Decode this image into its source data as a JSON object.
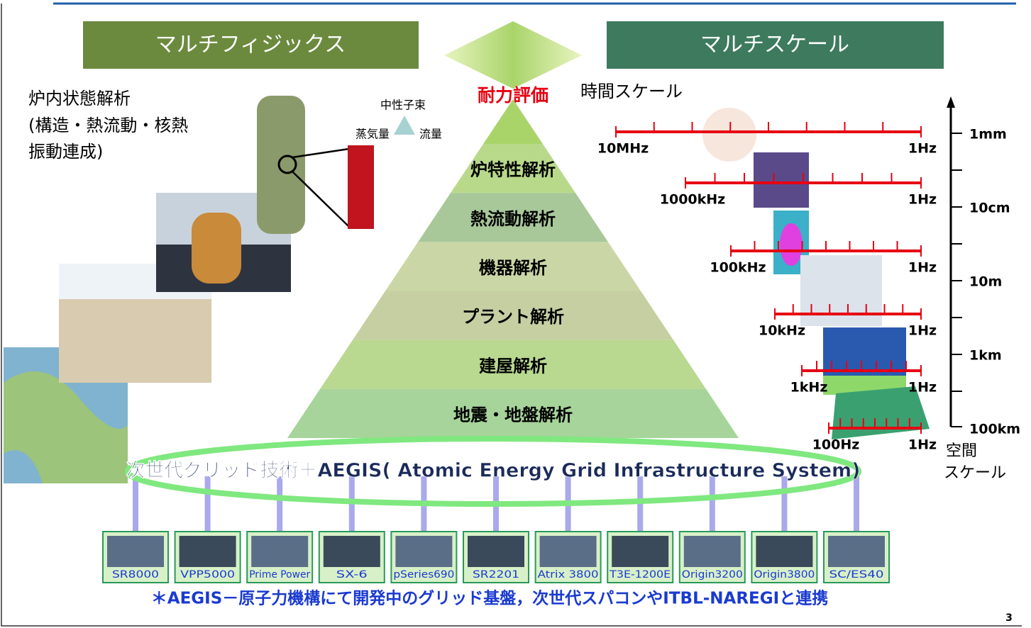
{
  "header": {
    "left": "マルチフィジックス",
    "right": "マルチスケール",
    "center": "耐力評価"
  },
  "left_notes": {
    "lines": [
      "炉内状態解析",
      "(構造・熱流動・核熱",
      "振動連成)"
    ],
    "flux": "中性子束",
    "steam": "蒸気量",
    "flow": "流量"
  },
  "pyramid": {
    "levels": [
      "炉特性解析",
      "熱流動解析",
      "機器解析",
      "プラント解析",
      "建屋解析",
      "地震・地盤解析"
    ]
  },
  "time_scale": {
    "title": "時間スケール",
    "rows": [
      {
        "from": "10MHz",
        "to": "1Hz"
      },
      {
        "from": "1000kHz",
        "to": "1Hz"
      },
      {
        "from": "100kHz",
        "to": "1Hz"
      },
      {
        "from": "10kHz",
        "to": "1Hz"
      },
      {
        "from": "1kHz",
        "to": "1Hz"
      },
      {
        "from": "100Hz",
        "to": "1Hz"
      }
    ]
  },
  "space_scale": {
    "labels": [
      "1mm",
      "10cm",
      "10m",
      "1km",
      "100km"
    ],
    "title": [
      "空間",
      "スケール"
    ]
  },
  "grid": {
    "label": "次世代グリッド技術＋AEGIS( Atomic  Energy Grid Infrastructure System)"
  },
  "machines": [
    "SR8000",
    "VPP5000",
    "Prime Power",
    "SX-6",
    "pSeries690",
    "SR2201",
    "Atrix 3800",
    "T3E-1200E",
    "Origin3200",
    "Origin3800",
    "SC/ES40"
  ],
  "footer": {
    "note": "＊AEGIS－原子力機構にて開発中のグリッド基盤，次世代スパコンやITBL-NAREGIと連携",
    "page": "3"
  }
}
